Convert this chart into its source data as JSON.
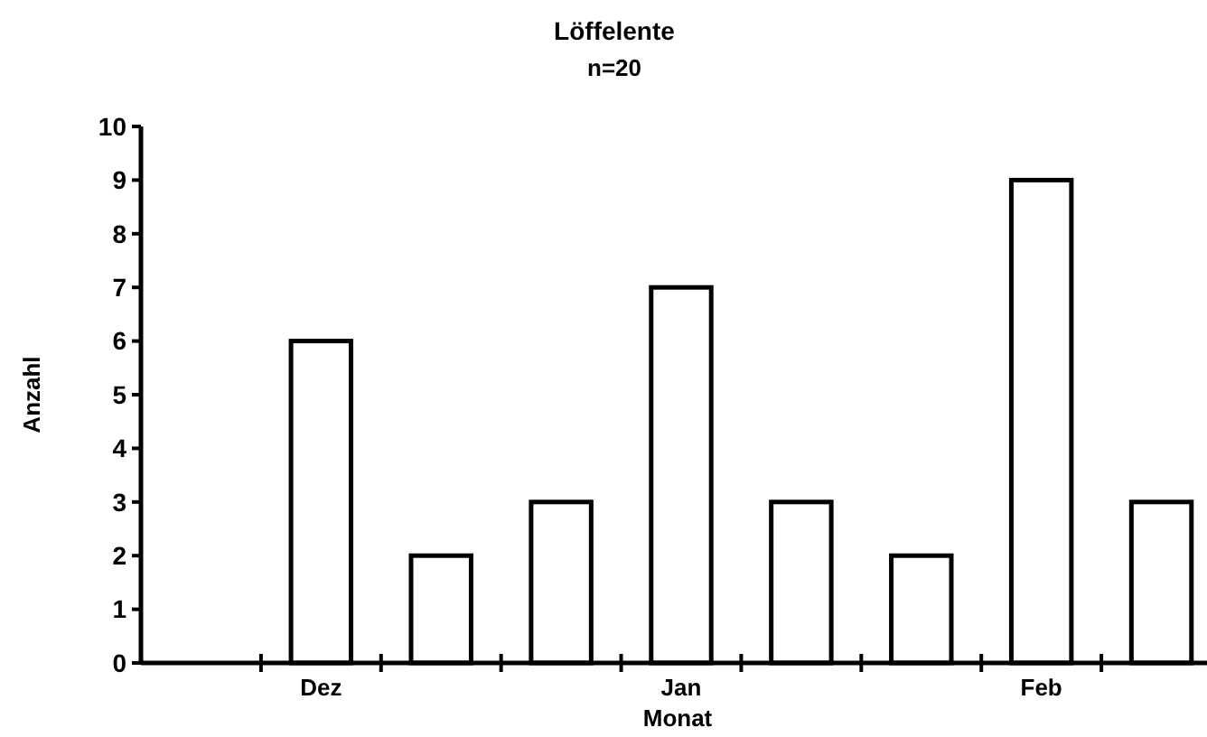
{
  "chart_data": {
    "type": "bar",
    "title": "Löffelente",
    "subtitle": "n=20",
    "xlabel": "Monat",
    "ylabel": "Anzahl",
    "categories": [
      null,
      "Dez",
      null,
      null,
      "Jan",
      null,
      null,
      "Feb",
      null
    ],
    "values": [
      null,
      6,
      2,
      3,
      7,
      3,
      2,
      9,
      3
    ],
    "color": "#ffffff",
    "ylim": [
      0,
      10
    ],
    "yticks": [
      0,
      1,
      2,
      3,
      4,
      5,
      6,
      7,
      8,
      9,
      10
    ],
    "grid": false
  }
}
